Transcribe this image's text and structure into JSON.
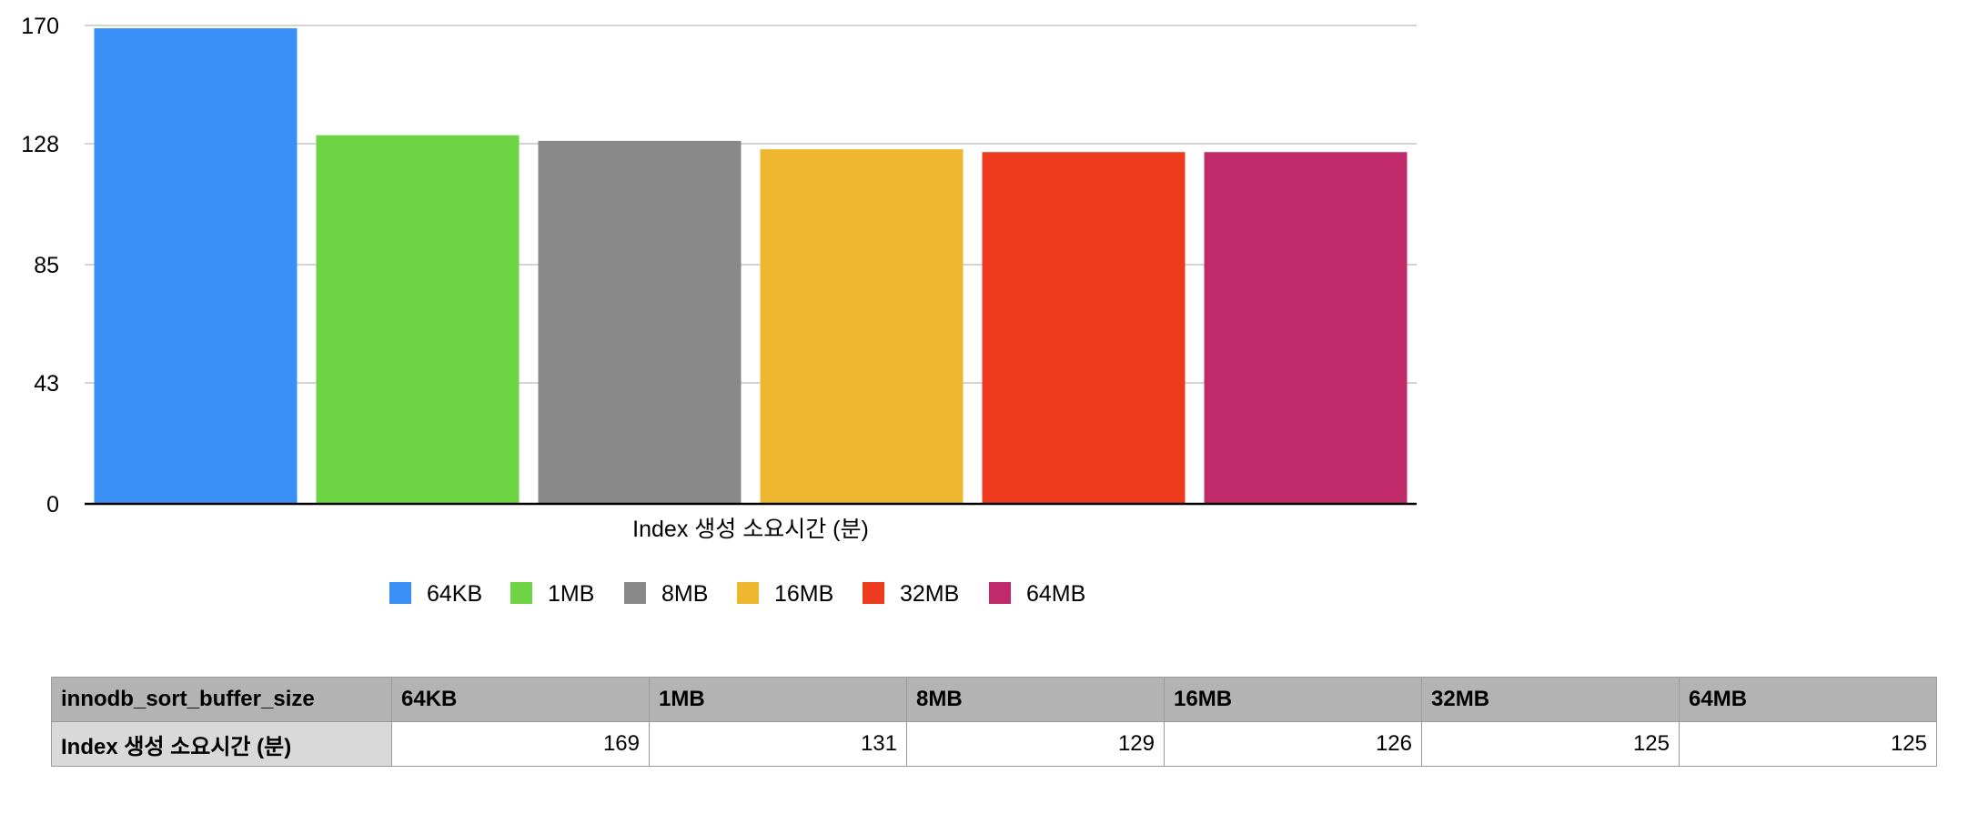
{
  "chart_data": {
    "type": "bar",
    "categories": [
      "Index 생성 소요시간 (분)"
    ],
    "series": [
      {
        "name": "64KB",
        "values": [
          169
        ],
        "color": "#3a8ff7"
      },
      {
        "name": "1MB",
        "values": [
          131
        ],
        "color": "#6dd444"
      },
      {
        "name": "8MB",
        "values": [
          129
        ],
        "color": "#898989"
      },
      {
        "name": "16MB",
        "values": [
          126
        ],
        "color": "#eeb72f"
      },
      {
        "name": "32MB",
        "values": [
          125
        ],
        "color": "#ee3b1d"
      },
      {
        "name": "64MB",
        "values": [
          125
        ],
        "color": "#c02a6b"
      }
    ],
    "xlabel": "Index 생성 소요시간 (분)",
    "ylabel": "",
    "ylim": [
      0,
      170
    ],
    "yticks": [
      "0",
      "43",
      "85",
      "128",
      "170"
    ],
    "grid": true,
    "legend_position": "bottom"
  },
  "table": {
    "header_label": "innodb_sort_buffer_size",
    "columns": [
      "64KB",
      "1MB",
      "8MB",
      "16MB",
      "32MB",
      "64MB"
    ],
    "row_label": "Index 생성 소요시간 (분)",
    "values": [
      "169",
      "131",
      "129",
      "126",
      "125",
      "125"
    ]
  },
  "colors": {
    "gridline": "#c6c6c6",
    "axis": "#000000",
    "table_header_bg": "#b3b3b3",
    "table_row_label_bg": "#d9d9d9"
  }
}
